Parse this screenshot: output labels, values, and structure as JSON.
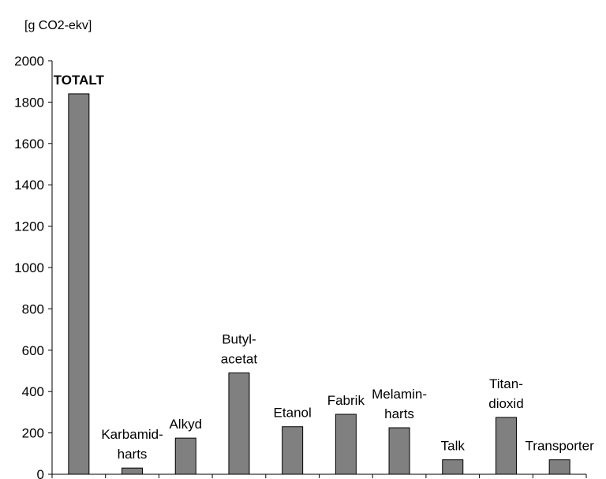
{
  "chart_data": {
    "type": "bar",
    "unit_label": "[g CO2-ekv]",
    "categories": [
      {
        "label": "TOTALT",
        "lines": [
          "TOTALT"
        ],
        "bold": true
      },
      {
        "label": "Karbamid-harts",
        "lines": [
          "Karbamid-",
          "harts"
        ],
        "bold": false
      },
      {
        "label": "Alkyd",
        "lines": [
          "Alkyd"
        ],
        "bold": false
      },
      {
        "label": "Butyl-acetat",
        "lines": [
          "Butyl-",
          "acetat"
        ],
        "bold": false
      },
      {
        "label": "Etanol",
        "lines": [
          "Etanol"
        ],
        "bold": false
      },
      {
        "label": "Fabrik",
        "lines": [
          "Fabrik"
        ],
        "bold": false
      },
      {
        "label": "Melamin-harts",
        "lines": [
          "Melamin-",
          "harts"
        ],
        "bold": false
      },
      {
        "label": "Talk",
        "lines": [
          "Talk"
        ],
        "bold": false
      },
      {
        "label": "Titan-dioxid",
        "lines": [
          "Titan-",
          "dioxid"
        ],
        "bold": false
      },
      {
        "label": "Transporter",
        "lines": [
          "Transporter"
        ],
        "bold": false
      }
    ],
    "values": [
      1840,
      30,
      175,
      490,
      230,
      290,
      225,
      70,
      275,
      70
    ],
    "ylim": [
      0,
      2000
    ],
    "yticks": [
      "0",
      "200",
      "400",
      "600",
      "800",
      "1000",
      "1200",
      "1400",
      "1600",
      "1800",
      "2000"
    ],
    "grid": false,
    "legend": "none",
    "bar_color": "#808080",
    "bar_edge_color": "#000000"
  }
}
